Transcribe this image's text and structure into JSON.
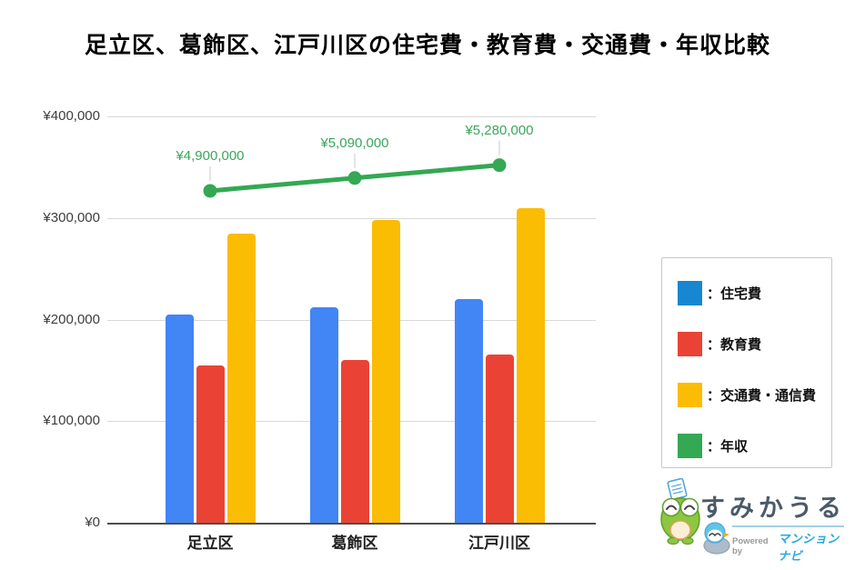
{
  "title": "足立区、葛飾区、江戸川区の住宅費・教育費・交通費・年収比較",
  "chart_data": {
    "type": "bar",
    "subtype": "grouped bars with secondary-axis line overlay",
    "categories": [
      "足立区",
      "葛飾区",
      "江戸川区"
    ],
    "series": [
      {
        "name": "住宅費",
        "type": "bar",
        "color": "#4285F4",
        "values": [
          205000,
          212000,
          220000
        ]
      },
      {
        "name": "教育費",
        "type": "bar",
        "color": "#EA4335",
        "values": [
          155000,
          160000,
          166000
        ]
      },
      {
        "name": "交通費・通信費",
        "type": "bar",
        "color": "#FBBC04",
        "values": [
          285000,
          298000,
          310000
        ]
      },
      {
        "name": "年収",
        "type": "line",
        "color": "#34A853",
        "axis": "secondary",
        "values": [
          4900000,
          5090000,
          5280000
        ],
        "labels": [
          "¥4,900,000",
          "¥5,090,000",
          "¥5,280,000"
        ]
      }
    ],
    "y_axis": {
      "min": 0,
      "max": 400000,
      "tick_step": 100000,
      "ticks": [
        "¥400,000",
        "¥300,000",
        "¥200,000",
        "¥100,000",
        "¥0"
      ]
    },
    "secondary_axis": {
      "min": 0,
      "max": 6000000,
      "visible": false
    },
    "grid": true,
    "legend_position": "right"
  },
  "legend": {
    "items": [
      {
        "label": "：住宅費",
        "color": "#1687D0"
      },
      {
        "label": "：教育費",
        "color": "#EA4335"
      },
      {
        "label": "：交通費・通信費",
        "color": "#FBBC04"
      },
      {
        "label": "：年収",
        "color": "#34A853"
      }
    ]
  },
  "logo": {
    "wordmark": "すみかうる",
    "powered_by": "Powered by",
    "brand": "マンションナビ"
  }
}
